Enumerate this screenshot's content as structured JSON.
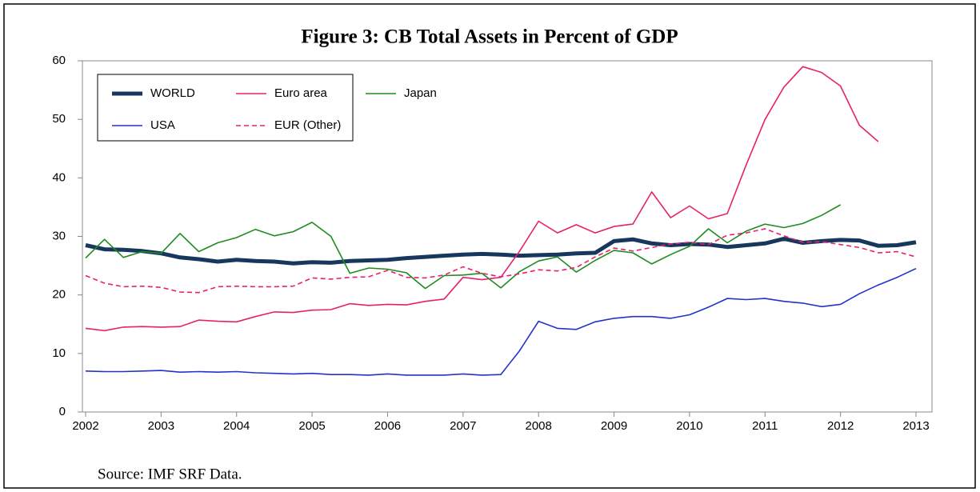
{
  "chart_data": {
    "type": "line",
    "title": "Figure 3: CB Total Assets in Percent of GDP",
    "source": "Source: IMF SRF Data.",
    "x": [
      2002,
      2002.25,
      2002.5,
      2002.75,
      2003,
      2003.25,
      2003.5,
      2003.75,
      2004,
      2004.25,
      2004.5,
      2004.75,
      2005,
      2005.25,
      2005.5,
      2005.75,
      2006,
      2006.25,
      2006.5,
      2006.75,
      2007,
      2007.25,
      2007.5,
      2007.75,
      2008,
      2008.25,
      2008.5,
      2008.75,
      2009,
      2009.25,
      2009.5,
      2009.75,
      2010,
      2010.25,
      2010.5,
      2010.75,
      2011,
      2011.25,
      2011.5,
      2011.75,
      2012,
      2012.25,
      2012.5,
      2012.75,
      2013
    ],
    "series": [
      {
        "name": "WORLD",
        "color": "#17375e",
        "width": 5,
        "dashed": false,
        "values": [
          28.5,
          27.8,
          27.7,
          27.5,
          27.1,
          26.4,
          26.1,
          25.7,
          26.0,
          25.8,
          25.7,
          25.4,
          25.6,
          25.5,
          25.8,
          25.9,
          26.0,
          26.3,
          26.5,
          26.7,
          26.9,
          27.0,
          26.9,
          26.7,
          26.8,
          26.9,
          27.1,
          27.2,
          29.2,
          29.5,
          28.8,
          28.5,
          28.7,
          28.6,
          28.2,
          28.5,
          28.8,
          29.6,
          28.9,
          29.2,
          29.4,
          29.3,
          28.4,
          28.5,
          29.0
        ]
      },
      {
        "name": "Euro area",
        "color": "#e8206e",
        "width": 1.6,
        "dashed": false,
        "values": [
          14.3,
          13.9,
          14.5,
          14.6,
          14.5,
          14.6,
          15.7,
          15.5,
          15.4,
          16.3,
          17.1,
          17.0,
          17.4,
          17.5,
          18.5,
          18.2,
          18.4,
          18.3,
          18.9,
          19.3,
          23.0,
          22.6,
          23.0,
          27.5,
          32.6,
          30.6,
          32.0,
          30.6,
          31.7,
          32.1,
          37.6,
          33.2,
          35.2,
          33.0,
          33.9,
          42.2,
          50.0,
          55.5,
          59.0,
          58.0,
          55.7,
          49.0,
          46.2,
          null,
          null
        ]
      },
      {
        "name": "Japan",
        "color": "#1e8c1e",
        "width": 1.6,
        "dashed": false,
        "values": [
          26.3,
          29.5,
          26.4,
          27.4,
          27.1,
          30.5,
          27.4,
          28.9,
          29.8,
          31.2,
          30.1,
          30.8,
          32.4,
          30.0,
          23.7,
          24.6,
          24.4,
          23.8,
          21.1,
          23.3,
          23.4,
          23.7,
          21.2,
          24.0,
          25.8,
          26.5,
          23.9,
          25.9,
          27.6,
          27.2,
          25.3,
          26.9,
          28.3,
          31.3,
          28.9,
          30.9,
          32.1,
          31.5,
          32.2,
          33.6,
          35.4,
          null,
          null,
          null,
          null
        ]
      },
      {
        "name": "USA",
        "color": "#2233cc",
        "width": 1.6,
        "dashed": false,
        "values": [
          7.0,
          6.9,
          6.9,
          7.0,
          7.1,
          6.8,
          6.9,
          6.8,
          6.9,
          6.7,
          6.6,
          6.5,
          6.6,
          6.4,
          6.4,
          6.3,
          6.5,
          6.3,
          6.3,
          6.3,
          6.5,
          6.3,
          6.4,
          10.5,
          15.5,
          14.3,
          14.1,
          15.4,
          16.0,
          16.3,
          16.3,
          16.0,
          16.6,
          17.9,
          19.4,
          19.2,
          19.4,
          18.9,
          18.6,
          18.0,
          18.4,
          20.2,
          21.7,
          23.0,
          24.5
        ]
      },
      {
        "name": "EUR (Other)",
        "color": "#e8206e",
        "width": 1.6,
        "dashed": true,
        "values": [
          23.3,
          22.0,
          21.4,
          21.5,
          21.3,
          20.5,
          20.4,
          21.4,
          21.5,
          21.4,
          21.4,
          21.5,
          22.9,
          22.7,
          23.0,
          23.1,
          24.2,
          23.0,
          22.9,
          23.4,
          24.8,
          23.7,
          23.1,
          23.6,
          24.3,
          24.1,
          24.7,
          26.5,
          28.0,
          27.5,
          28.1,
          28.7,
          29.0,
          28.6,
          30.2,
          30.6,
          31.3,
          30.1,
          29.0,
          29.1,
          28.6,
          28.1,
          27.2,
          27.4,
          26.5
        ]
      }
    ],
    "xlim": [
      2002,
      2013
    ],
    "xticks": [
      2002,
      2003,
      2004,
      2005,
      2006,
      2007,
      2008,
      2009,
      2010,
      2011,
      2012,
      2013
    ],
    "ylim": [
      0,
      60
    ],
    "yticks": [
      0,
      10,
      20,
      30,
      40,
      50,
      60
    ],
    "grid": false,
    "legend": "top-left"
  }
}
